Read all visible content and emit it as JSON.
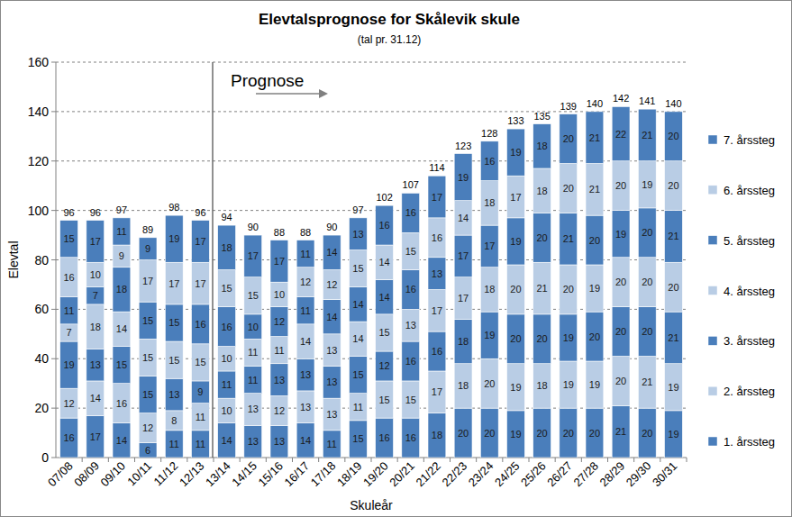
{
  "chart_data": {
    "type": "bar",
    "stacked": true,
    "data_labels": true,
    "grid": true,
    "legend": "right",
    "title": "Elevtalsprognose for Skålevik skule",
    "subtitle": "(tal pr. 31.12)",
    "x_label": "Skuleår",
    "y_label": "Elevtal",
    "annotations": [
      {
        "text": "Prognose",
        "category": "13/14"
      }
    ],
    "categories": [
      "07/08",
      "08/09",
      "09/10",
      "10/11",
      "11/12",
      "12/13",
      "13/14",
      "14/15",
      "15/16",
      "16/17",
      "17/18",
      "18/19",
      "19/20",
      "20/21",
      "21/22",
      "22/23",
      "23/24",
      "24/25",
      "25/26",
      "26/27",
      "27/28",
      "28/29",
      "29/30",
      "30/31"
    ],
    "ylim": [
      0,
      160
    ],
    "yticks": [
      0,
      20,
      40,
      60,
      80,
      100,
      120,
      140,
      160
    ],
    "totals": [
      96,
      96,
      97,
      89,
      98,
      96,
      94,
      90,
      88,
      88,
      90,
      97,
      102,
      107,
      114,
      123,
      128,
      133,
      135,
      139,
      140,
      142,
      141,
      140
    ],
    "series": [
      {
        "name": "1. årssteg",
        "color": "#4a7ebb",
        "values": [
          16,
          17,
          14,
          6,
          11,
          11,
          14,
          13,
          13,
          14,
          11,
          15,
          16,
          16,
          18,
          20,
          20,
          19,
          20,
          20,
          20,
          21,
          20,
          19
        ]
      },
      {
        "name": "2. årssteg",
        "color": "#b9cde5",
        "values": [
          12,
          14,
          16,
          12,
          8,
          11,
          10,
          13,
          12,
          13,
          13,
          11,
          15,
          15,
          17,
          18,
          20,
          19,
          18,
          19,
          19,
          20,
          21,
          19
        ]
      },
      {
        "name": "3. årssteg",
        "color": "#4a7ebb",
        "values": [
          19,
          13,
          15,
          15,
          13,
          9,
          11,
          11,
          13,
          13,
          13,
          15,
          12,
          16,
          16,
          18,
          19,
          20,
          20,
          19,
          20,
          20,
          20,
          21
        ]
      },
      {
        "name": "4. årssteg",
        "color": "#b9cde5",
        "values": [
          7,
          18,
          14,
          15,
          15,
          15,
          10,
          11,
          11,
          14,
          13,
          14,
          15,
          13,
          17,
          17,
          18,
          20,
          21,
          20,
          19,
          20,
          20,
          20
        ]
      },
      {
        "name": "5. årssteg",
        "color": "#4a7ebb",
        "values": [
          11,
          7,
          18,
          15,
          15,
          16,
          16,
          10,
          12,
          11,
          14,
          14,
          14,
          16,
          13,
          17,
          17,
          19,
          20,
          21,
          20,
          19,
          20,
          21
        ]
      },
      {
        "name": "6. årssteg",
        "color": "#b9cde5",
        "values": [
          16,
          10,
          9,
          17,
          17,
          17,
          15,
          15,
          10,
          12,
          12,
          15,
          14,
          15,
          16,
          14,
          18,
          17,
          18,
          20,
          21,
          20,
          19,
          20
        ]
      },
      {
        "name": "7. årssteg",
        "color": "#4a7ebb",
        "values": [
          15,
          17,
          11,
          9,
          19,
          17,
          18,
          17,
          17,
          11,
          14,
          13,
          16,
          16,
          17,
          19,
          16,
          19,
          18,
          20,
          21,
          22,
          21,
          20
        ]
      }
    ]
  }
}
